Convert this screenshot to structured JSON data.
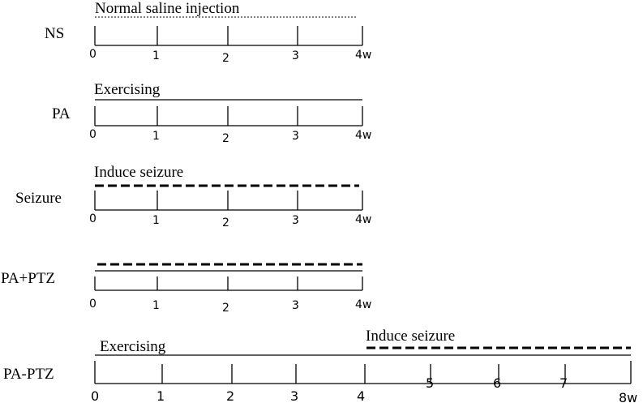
{
  "rows": [
    {
      "label": "NS",
      "annotation": {
        "text": "Normal saline injection"
      },
      "ticks": [
        "0",
        "1",
        "2",
        "3",
        "4w"
      ]
    },
    {
      "label": "PA",
      "annotation": {
        "text": "Exercising"
      },
      "ticks": [
        "0",
        "1",
        "2",
        "3",
        "4w"
      ]
    },
    {
      "label": "Seizure",
      "annotation": {
        "text": "Induce seizure"
      },
      "ticks": [
        "0",
        "1",
        "2",
        "3",
        "4w"
      ]
    },
    {
      "label": "PA+PTZ",
      "ticks": [
        "0",
        "1",
        "2",
        "3",
        "4w"
      ]
    },
    {
      "label": "PA-PTZ",
      "annotation": {
        "text": "Exercising"
      },
      "annotation2": {
        "text": "Induce seizure"
      },
      "ticks": [
        "0",
        "1",
        "2",
        "3",
        "4",
        "5",
        "6",
        "7",
        "8w"
      ]
    }
  ]
}
